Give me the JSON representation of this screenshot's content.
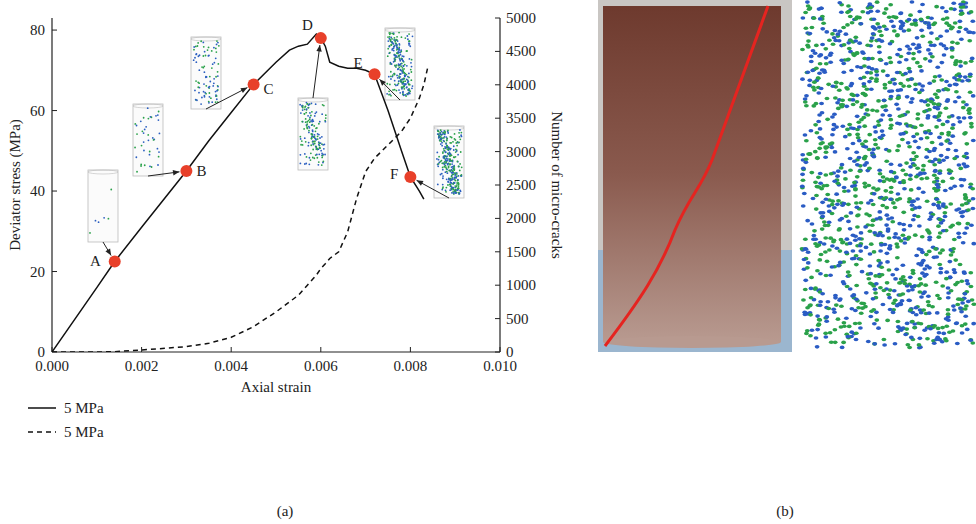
{
  "chart_data": {
    "type": "line",
    "panel_label": "(a)",
    "x_label": "Axial strain",
    "y_label": "Deviator stress (MPa)",
    "y2_label": "Number of micro-cracks",
    "xlim": [
      0,
      0.01
    ],
    "xticks": [
      {
        "value": 0,
        "label": "0.000"
      },
      {
        "value": 0.002,
        "label": "0.002"
      },
      {
        "value": 0.004,
        "label": "0.004"
      },
      {
        "value": 0.006,
        "label": "0.006"
      },
      {
        "value": 0.008,
        "label": "0.008"
      },
      {
        "value": 0.01,
        "label": "0.010"
      }
    ],
    "ylim": [
      0,
      83
    ],
    "yticks": [
      0,
      20,
      40,
      60,
      80
    ],
    "y2lim": [
      0,
      5000
    ],
    "y2ticks": [
      0,
      500,
      1000,
      1500,
      2000,
      2500,
      3000,
      3500,
      4000,
      4500,
      5000
    ],
    "legend": "bottom",
    "x": [
      0,
      0.001,
      0.0014,
      0.002,
      0.003,
      0.0035,
      0.004,
      0.0045,
      0.005,
      0.0053,
      0.0055,
      0.0057,
      0.0059,
      0.006,
      0.0061,
      0.0062,
      0.0064,
      0.0066,
      0.0068,
      0.007,
      0.0072,
      0.0075,
      0.0078,
      0.008,
      0.0082,
      0.0083,
      0.0084
    ],
    "series": [
      {
        "name": "5 MPa",
        "color": "#111111",
        "line_style": "solid",
        "values": [
          0,
          16,
          22.5,
          31,
          45,
          52.5,
          59.5,
          66.5,
          72,
          75,
          76,
          76.5,
          79,
          78,
          76,
          72,
          71,
          70.5,
          70.5,
          70,
          69,
          60,
          50,
          43.5,
          40,
          38,
          null
        ]
      },
      {
        "name": "5 MPa",
        "color": "#111111",
        "line_style": "dashed",
        "axis": "y2",
        "values": [
          0,
          0,
          5,
          30,
          80,
          130,
          220,
          380,
          600,
          750,
          850,
          1000,
          1150,
          1250,
          1320,
          1400,
          1500,
          1800,
          2300,
          2700,
          2900,
          3100,
          3300,
          3500,
          3800,
          4000,
          4300
        ]
      }
    ],
    "annotations": [
      {
        "label": "A",
        "x": 0.0014,
        "y": 22.5,
        "color": "#e8402a"
      },
      {
        "label": "B",
        "x": 0.003,
        "y": 45,
        "color": "#e8402a"
      },
      {
        "label": "C",
        "x": 0.0045,
        "y": 66.5,
        "color": "#e8402a"
      },
      {
        "label": "D",
        "x": 0.006,
        "y": 78,
        "color": "#e8402a"
      },
      {
        "label": "E",
        "x": 0.0072,
        "y": 69,
        "color": "#e8402a"
      },
      {
        "label": "F",
        "x": 0.008,
        "y": 43.5,
        "color": "#e8402a"
      }
    ]
  },
  "photo_panel": {
    "label": "(b)"
  }
}
